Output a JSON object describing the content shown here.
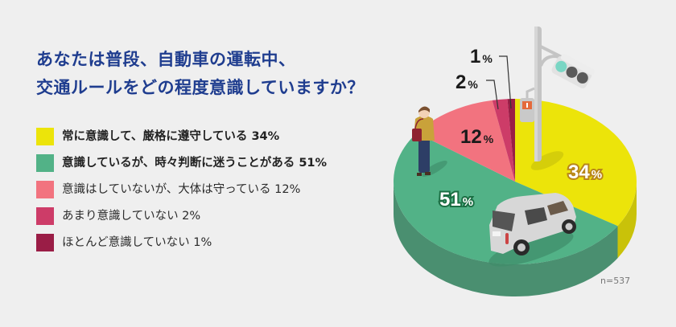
{
  "title": {
    "line1": "あなたは普段、自動車の運転中、",
    "line2": "交通ルールをどの程度意識していますか？"
  },
  "legend": [
    {
      "label": "常に意識して、厳格に遵守している 34%",
      "color": "#ece40a",
      "bold": true
    },
    {
      "label": "意識しているが、時々判断に迷うことがある 51%",
      "color": "#52b287",
      "bold": true
    },
    {
      "label": "意識はしていないが、大体は守っている 12%",
      "color": "#f2737f",
      "bold": false
    },
    {
      "label": "あまり意識していない 2%",
      "color": "#cd3c68",
      "bold": false
    },
    {
      "label": "ほとんど意識していない 1%",
      "color": "#9a1d46",
      "bold": false
    }
  ],
  "sample_note": "n=537",
  "chart_data": {
    "type": "pie",
    "title": "あなたは普段、自動車の運転中、交通ルールをどの程度意識していますか？",
    "categories": [
      "常に意識して、厳格に遵守している",
      "意識しているが、時々判断に迷うことがある",
      "意識はしていないが、大体は守っている",
      "あまり意識していない",
      "ほとんど意識していない"
    ],
    "values": [
      34,
      51,
      12,
      2,
      1
    ],
    "unit": "%",
    "data_labels": [
      "34%",
      "51%",
      "12%",
      "2%",
      "1%"
    ],
    "colors": [
      "#ece40a",
      "#52b287",
      "#f2737f",
      "#cd3c68",
      "#9a1d46"
    ],
    "side_colors": [
      "#c9c209",
      "#4a8f70",
      "#cc5e69",
      "#a93156",
      "#7c1738"
    ],
    "start_angle": "12 o'clock, clockwise",
    "style": "3D pie",
    "legend_position": "left",
    "n": 537
  }
}
